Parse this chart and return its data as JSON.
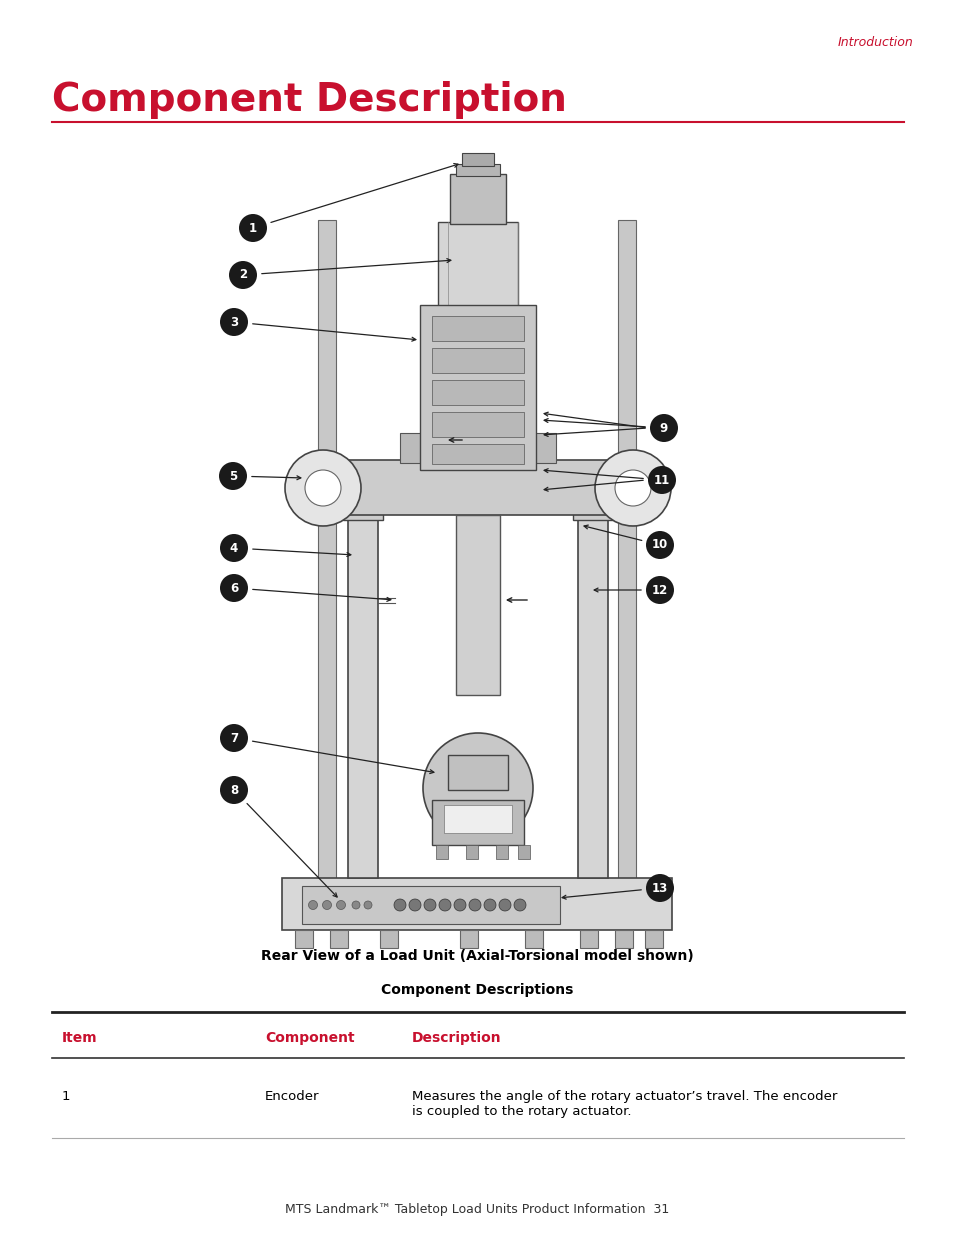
{
  "page_bg": "#ffffff",
  "header_text": "Introduction",
  "header_color": "#c8102e",
  "header_fontsize": 9,
  "title_text": "Component Description",
  "title_color": "#c8102e",
  "title_fontsize": 28,
  "title_line_color": "#c8102e",
  "figure_caption": "Rear View of a Load Unit (Axial-Torsional model shown)",
  "figure_caption_fontsize": 10,
  "table_title": "Component Descriptions",
  "table_title_fontsize": 10,
  "col_headers": [
    "Item",
    "Component",
    "Description"
  ],
  "col_header_color": "#c8102e",
  "col_header_fontsize": 10,
  "table_row_num": "1",
  "table_row_component": "Encoder",
  "table_row_description": "Measures the angle of the rotary actuator’s travel. The encoder\nis coupled to the rotary actuator.",
  "table_fontsize": 9.5,
  "footer_text": "MTS Landmark™ Tabletop Load Units Product Information  31",
  "footer_fontsize": 9,
  "label_bg_color": "#1a1a1a",
  "label_text_color": "#ffffff"
}
